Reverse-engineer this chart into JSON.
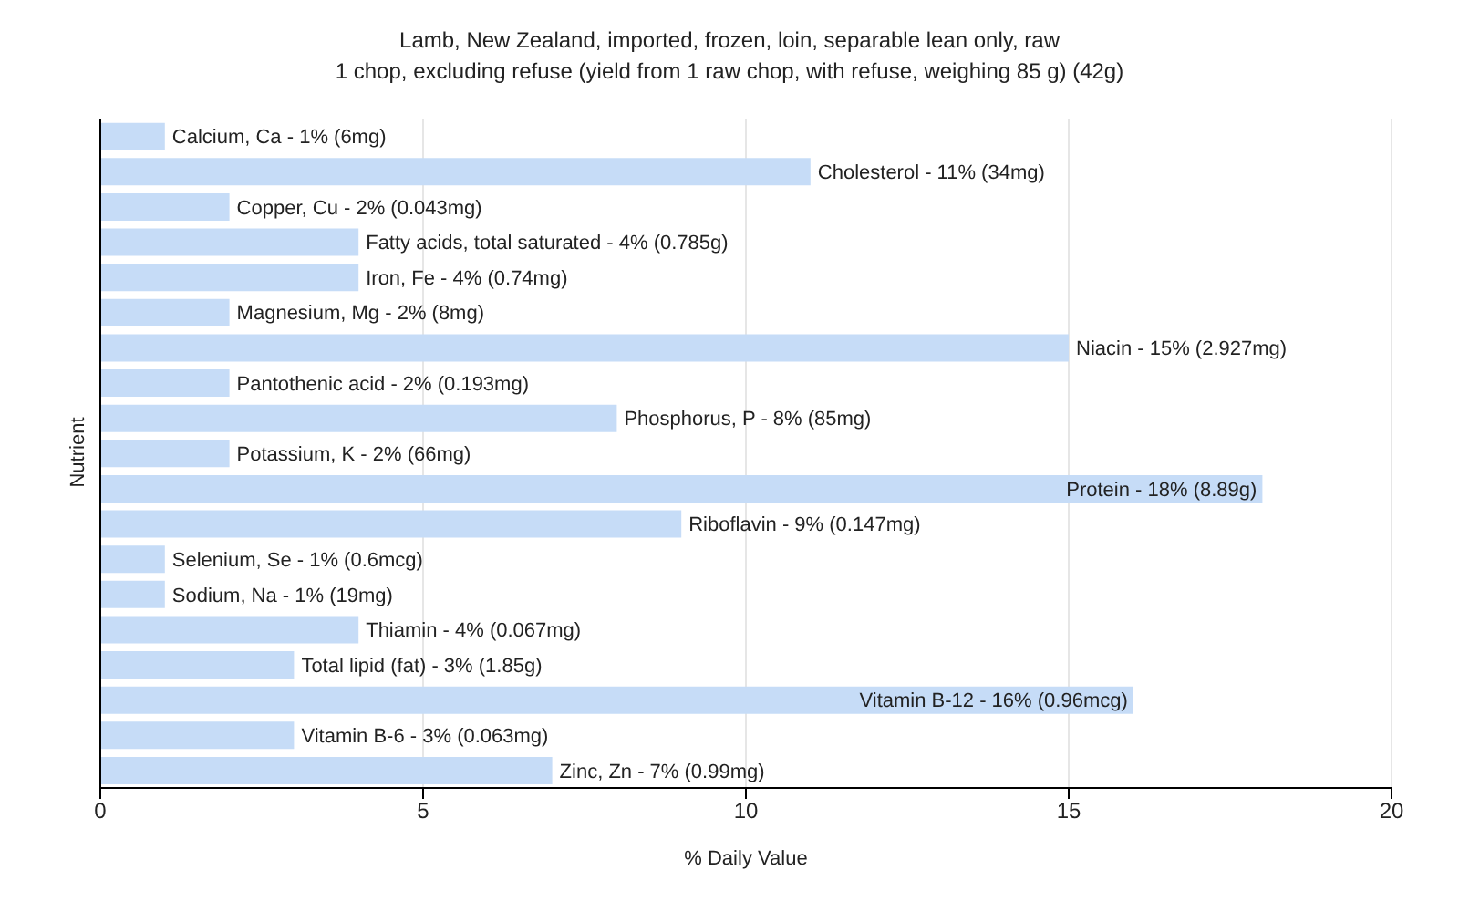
{
  "chart_data": {
    "type": "bar",
    "orientation": "horizontal",
    "title": "Lamb, New Zealand, imported, frozen, loin, separable lean only, raw",
    "subtitle": "1 chop, excluding refuse (yield from 1 raw chop, with refuse, weighing 85 g) (42g)",
    "xlabel": "% Daily Value",
    "ylabel": "Nutrient",
    "categories": [
      "Calcium, Ca - 1% (6mg)",
      "Cholesterol - 11% (34mg)",
      "Copper, Cu - 2% (0.043mg)",
      "Fatty acids, total saturated - 4% (0.785g)",
      "Iron, Fe - 4% (0.74mg)",
      "Magnesium, Mg - 2% (8mg)",
      "Niacin - 15% (2.927mg)",
      "Pantothenic acid - 2% (0.193mg)",
      "Phosphorus, P - 8% (85mg)",
      "Potassium, K - 2% (66mg)",
      "Protein - 18% (8.89g)",
      "Riboflavin - 9% (0.147mg)",
      "Selenium, Se - 1% (0.6mcg)",
      "Sodium, Na - 1% (19mg)",
      "Thiamin - 4% (0.067mg)",
      "Total lipid (fat) - 3% (1.85g)",
      "Vitamin B-12 - 16% (0.96mcg)",
      "Vitamin B-6 - 3% (0.063mg)",
      "Zinc, Zn - 7% (0.99mg)"
    ],
    "values": [
      1,
      11,
      2,
      4,
      4,
      2,
      15,
      2,
      8,
      2,
      18,
      9,
      1,
      1,
      4,
      3,
      16,
      3,
      7
    ],
    "color": "#c6dcf7",
    "xlim": [
      0,
      20
    ],
    "xticks": [
      0,
      5,
      10,
      15,
      20
    ],
    "grid": "x",
    "legend": false,
    "tick_labels": "x"
  }
}
